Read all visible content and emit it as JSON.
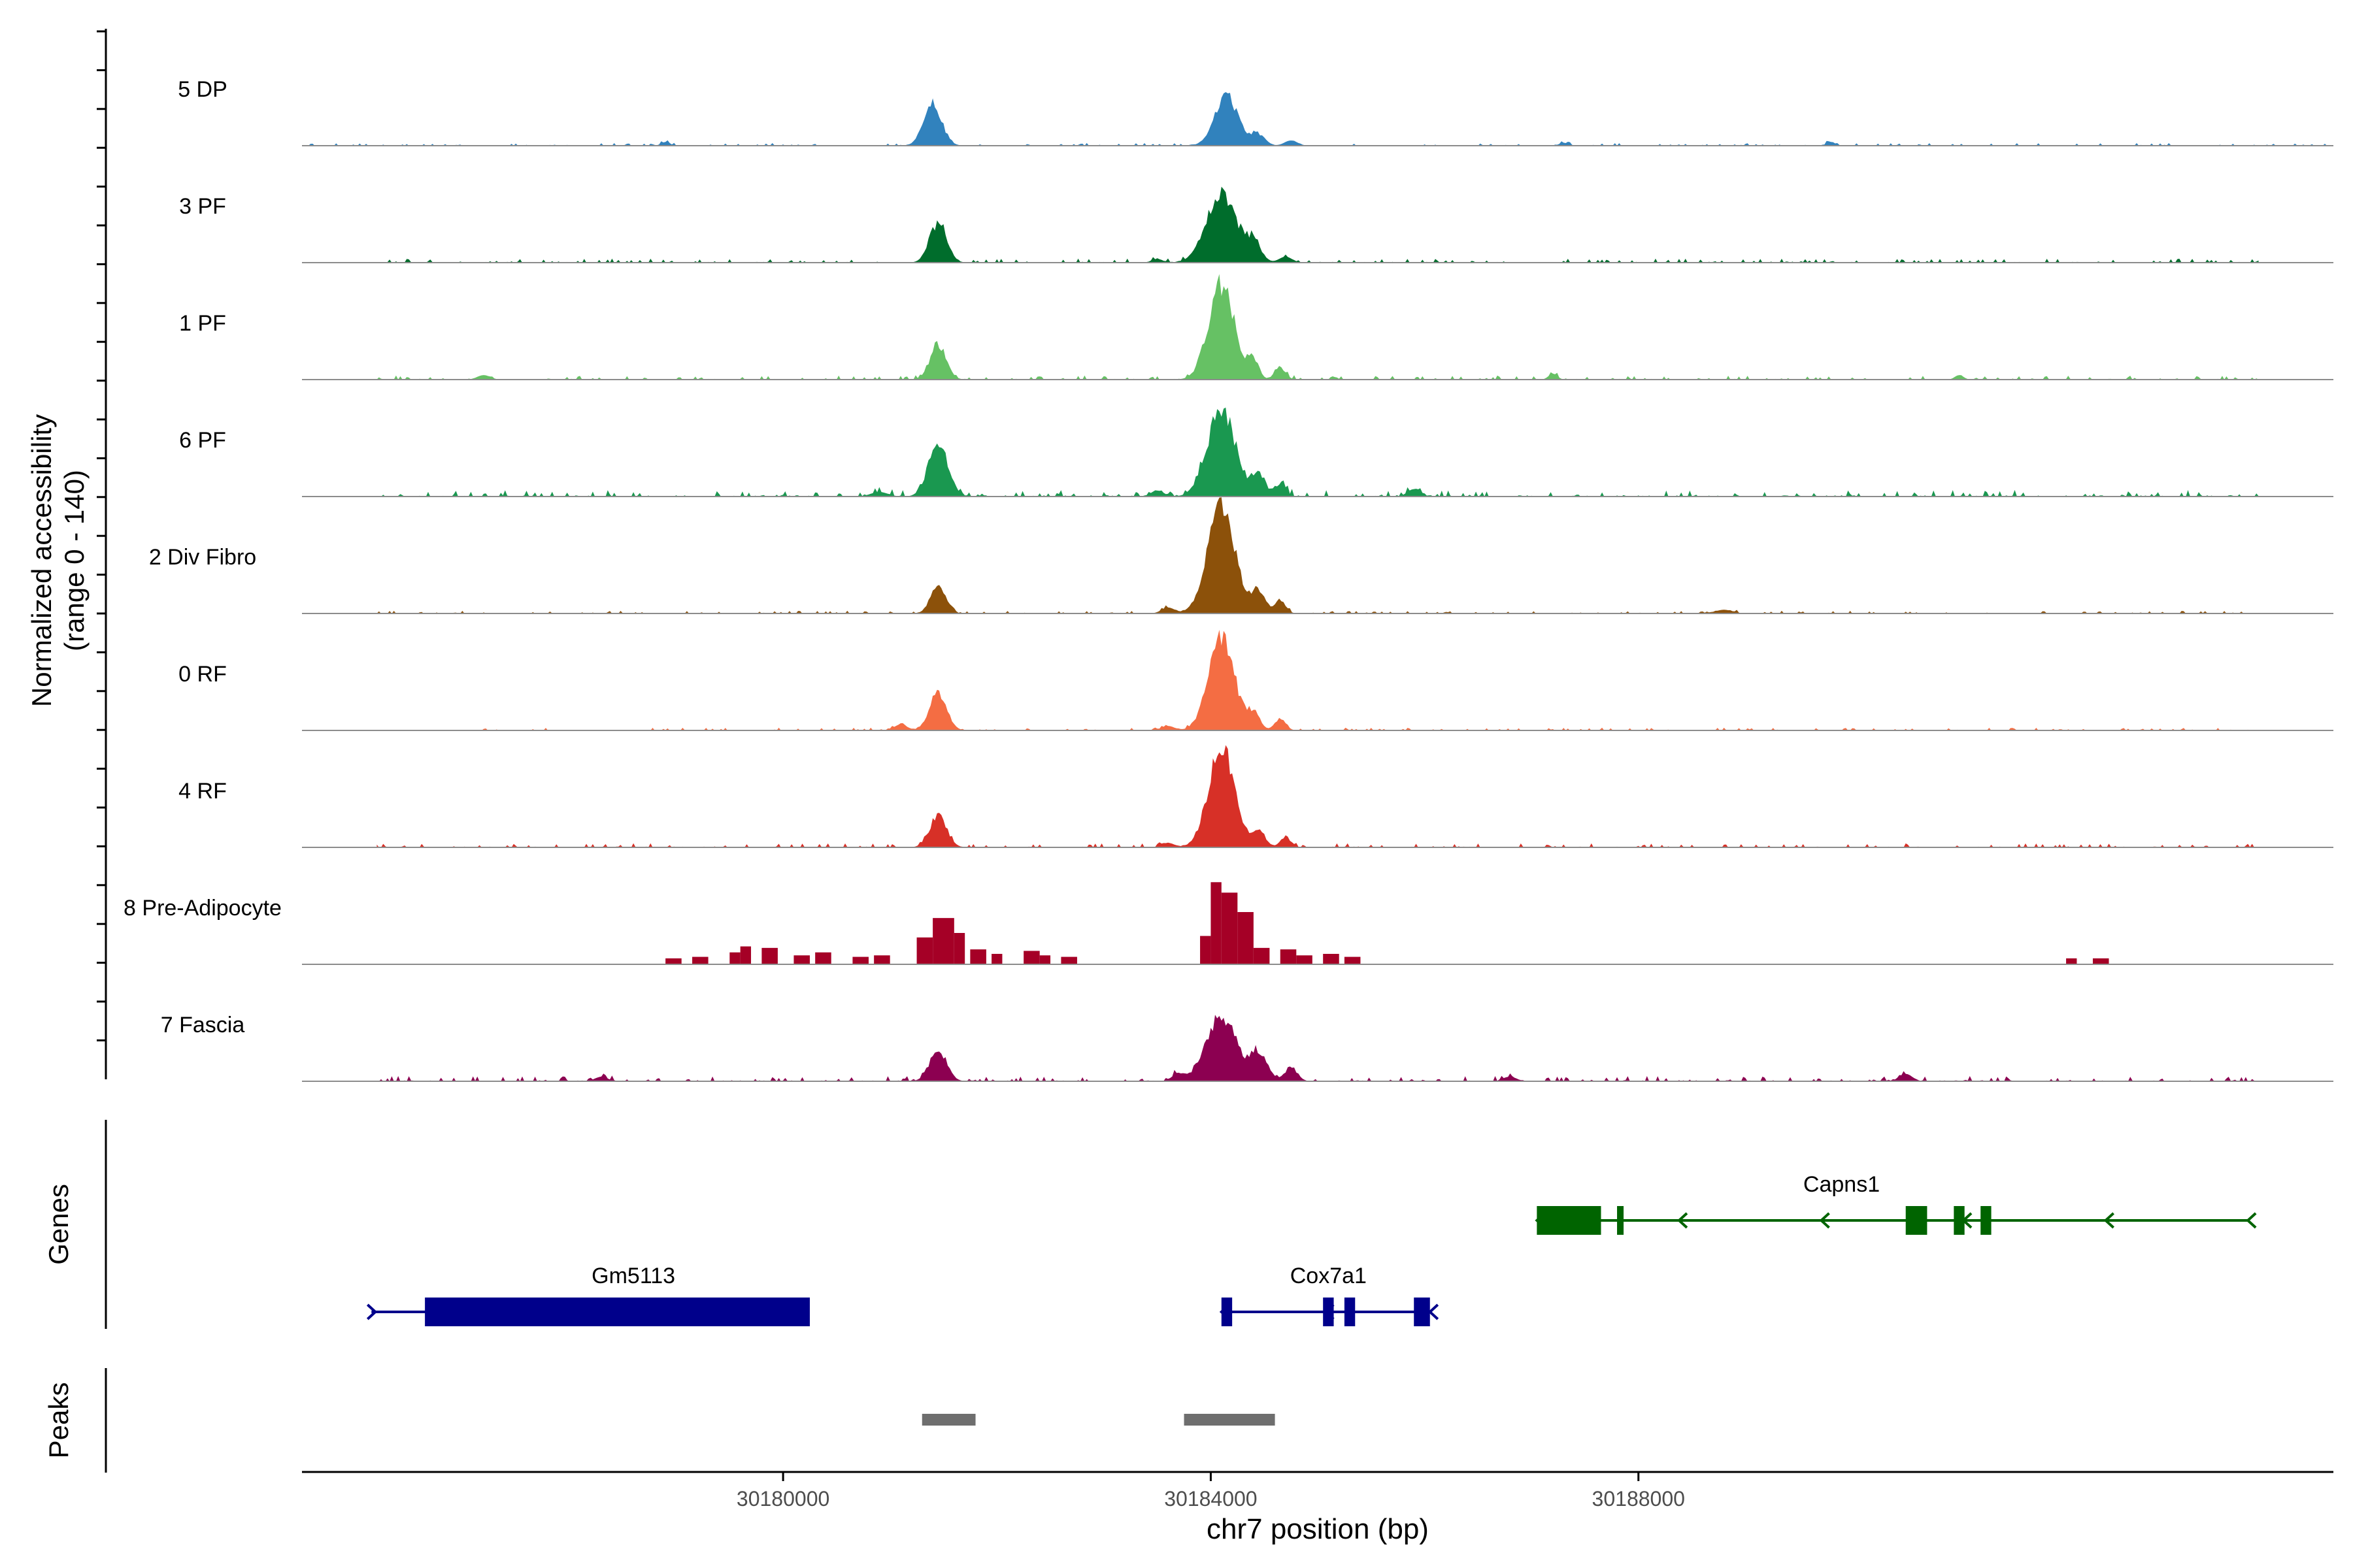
{
  "chart_data": {
    "type": "coverage",
    "ylabel_line1": "Normalized accessibility",
    "ylabel_line2": "(range 0 - 140)",
    "ylim": [
      0,
      140
    ],
    "xlabel": "chr7 position (bp)",
    "xlim": [
      30175500,
      30194500
    ],
    "xticks": [
      {
        "value": 30180000,
        "label": "30180000"
      },
      {
        "value": 30184000,
        "label": "30184000"
      },
      {
        "value": 30188000,
        "label": "30188000"
      }
    ],
    "genes_label": "Genes",
    "peaks_label": "Peaks",
    "tracks": [
      {
        "name": "5 DP",
        "color": "#3182bd",
        "noise": 2,
        "span": [
          30175500,
          30194500
        ],
        "peaks": [
          [
            30181400,
            55,
            85
          ],
          [
            30184150,
            65,
            110
          ],
          [
            30184450,
            15,
            60
          ],
          [
            30184750,
            7,
            60
          ],
          [
            30178900,
            5,
            40
          ],
          [
            30187300,
            4,
            40
          ],
          [
            30189800,
            5,
            40
          ]
        ]
      },
      {
        "name": "3 PF",
        "color": "#006d2c",
        "noise": 3,
        "span": [
          30176200,
          30193800
        ],
        "peaks": [
          [
            30181450,
            52,
            80
          ],
          [
            30184100,
            92,
            140
          ],
          [
            30184400,
            25,
            70
          ],
          [
            30184700,
            8,
            60
          ],
          [
            30183500,
            5,
            50
          ]
        ]
      },
      {
        "name": "1 PF",
        "color": "#66c164",
        "noise": 3,
        "span": [
          30176200,
          30193800
        ],
        "peaks": [
          [
            30181450,
            47,
            75
          ],
          [
            30184100,
            128,
            120
          ],
          [
            30184400,
            25,
            50
          ],
          [
            30184650,
            16,
            50
          ],
          [
            30177200,
            6,
            60
          ],
          [
            30187200,
            8,
            40
          ],
          [
            30191000,
            6,
            40
          ]
        ]
      },
      {
        "name": "6 PF",
        "color": "#1a9850",
        "noise": 5,
        "span": [
          30176200,
          30193800
        ],
        "peaks": [
          [
            30181450,
            72,
            90
          ],
          [
            30184100,
            118,
            130
          ],
          [
            30184450,
            30,
            60
          ],
          [
            30184650,
            18,
            50
          ],
          [
            30183500,
            8,
            60
          ],
          [
            30180900,
            6,
            80
          ],
          [
            30185900,
            10,
            60
          ]
        ]
      },
      {
        "name": "2 Div Fibro",
        "color": "#8c510a",
        "noise": 2,
        "span": [
          30176200,
          30193800
        ],
        "peaks": [
          [
            30181450,
            37,
            70
          ],
          [
            30184100,
            138,
            130
          ],
          [
            30184450,
            30,
            60
          ],
          [
            30184650,
            18,
            50
          ],
          [
            30183600,
            8,
            60
          ],
          [
            30188800,
            5,
            80
          ]
        ]
      },
      {
        "name": "0 RF",
        "color": "#f46d43",
        "noise": 2,
        "span": [
          30176200,
          30193800
        ],
        "peaks": [
          [
            30181450,
            50,
            80
          ],
          [
            30184100,
            126,
            120
          ],
          [
            30184400,
            22,
            60
          ],
          [
            30184650,
            16,
            50
          ],
          [
            30181100,
            8,
            60
          ],
          [
            30183600,
            6,
            60
          ]
        ]
      },
      {
        "name": "4 RF",
        "color": "#d73027",
        "noise": 3,
        "span": [
          30176200,
          30193800
        ],
        "peaks": [
          [
            30181450,
            42,
            80
          ],
          [
            30184100,
            135,
            120
          ],
          [
            30184450,
            22,
            60
          ],
          [
            30184700,
            14,
            50
          ],
          [
            30183600,
            6,
            60
          ]
        ]
      },
      {
        "name": "8 Pre-Adipocyte",
        "color": "#a50026",
        "noise": 0,
        "span": [
          30175500,
          30194500
        ],
        "blocks": [
          [
            30178900,
            30179050,
            8
          ],
          [
            30179150,
            30179300,
            10
          ],
          [
            30179500,
            30179600,
            16
          ],
          [
            30179600,
            30179700,
            24
          ],
          [
            30179800,
            30179950,
            22
          ],
          [
            30180100,
            30180250,
            12
          ],
          [
            30180300,
            30180450,
            16
          ],
          [
            30180650,
            30180800,
            10
          ],
          [
            30180850,
            30181000,
            12
          ],
          [
            30181250,
            30181400,
            36
          ],
          [
            30181400,
            30181600,
            62
          ],
          [
            30181600,
            30181700,
            42
          ],
          [
            30181750,
            30181900,
            20
          ],
          [
            30181950,
            30182050,
            14
          ],
          [
            30182250,
            30182400,
            18
          ],
          [
            30182400,
            30182500,
            12
          ],
          [
            30182600,
            30182750,
            10
          ],
          [
            30183900,
            30184000,
            38
          ],
          [
            30184000,
            30184100,
            110
          ],
          [
            30184100,
            30184250,
            96
          ],
          [
            30184250,
            30184400,
            70
          ],
          [
            30184400,
            30184550,
            22
          ],
          [
            30184650,
            30184800,
            20
          ],
          [
            30184800,
            30184950,
            12
          ],
          [
            30185050,
            30185200,
            14
          ],
          [
            30185250,
            30185400,
            10
          ],
          [
            30192000,
            30192100,
            8
          ],
          [
            30192250,
            30192400,
            8
          ]
        ]
      },
      {
        "name": "7 Fascia",
        "color": "#8c0051",
        "noise": 4,
        "span": [
          30176200,
          30193800
        ],
        "peaks": [
          [
            30181450,
            40,
            80
          ],
          [
            30184100,
            88,
            140
          ],
          [
            30184450,
            36,
            80
          ],
          [
            30184750,
            18,
            60
          ],
          [
            30183700,
            10,
            60
          ],
          [
            30178300,
            6,
            60
          ],
          [
            30186800,
            6,
            60
          ],
          [
            30190500,
            10,
            60
          ]
        ]
      }
    ],
    "genes": [
      {
        "name": "Gm5113",
        "row": 2,
        "color": "#00008b",
        "strand": "+",
        "start": 30176150,
        "end": 30180250,
        "exons": [
          [
            30176650,
            30180250
          ]
        ],
        "label_pos": 30178600
      },
      {
        "name": "Cox7a1",
        "row": 2,
        "color": "#00008b",
        "strand": "-",
        "start": 30184100,
        "end": 30186050,
        "exons": [
          [
            30184100,
            30184200
          ],
          [
            30185050,
            30185150
          ],
          [
            30185250,
            30185350
          ],
          [
            30185900,
            30186050
          ]
        ],
        "label_pos": 30185100
      },
      {
        "name": "Capns1",
        "row": 1,
        "color": "#006400",
        "strand": "-",
        "start": 30187050,
        "end": 30193700,
        "exons": [
          [
            30187050,
            30187650
          ],
          [
            30187800,
            30187850
          ],
          [
            30190500,
            30190700
          ],
          [
            30190950,
            30191050
          ],
          [
            30191200,
            30191300
          ]
        ],
        "label_pos": 30189900
      }
    ],
    "peak_regions": [
      [
        30181300,
        30181800
      ],
      [
        30183750,
        30184600
      ]
    ]
  }
}
